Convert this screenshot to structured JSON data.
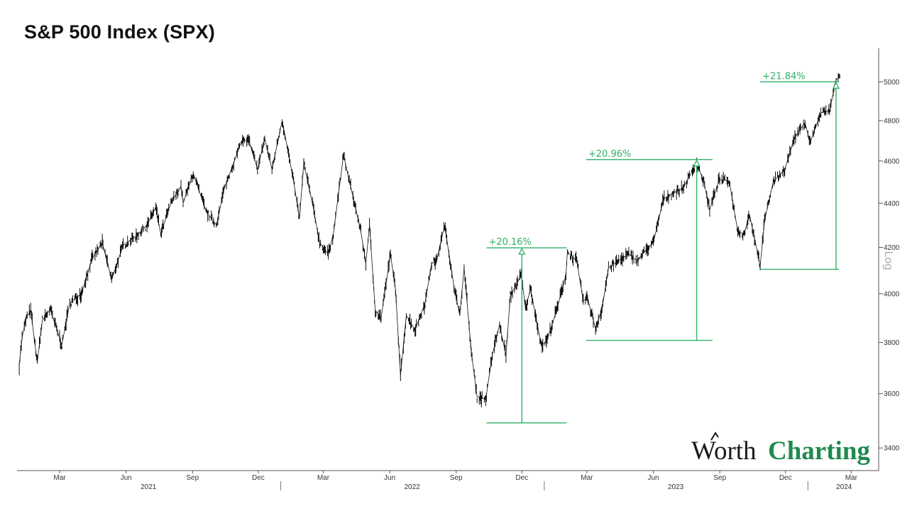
{
  "header": {
    "title": "S&P 500 Index (SPX)"
  },
  "logo": {
    "word1": "Worth",
    "word2": "Charting"
  },
  "colors": {
    "price": "#111111",
    "annotation": "#2fb065",
    "axis": "#555555",
    "logo_dark": "#1a1a1a",
    "logo_green": "#1f8a4c"
  },
  "chart_data": {
    "type": "line",
    "title": "S&P 500 Index (SPX)",
    "scale": "log",
    "scale_label": "Log",
    "grid": false,
    "ylim": [
      3320,
      5180
    ],
    "xlim": [
      "2021-01-01",
      "2024-04-08"
    ],
    "y_ticks": [
      3400,
      3600,
      3800,
      4000,
      4200,
      4400,
      4600,
      4800,
      5000
    ],
    "x_ticks": [
      {
        "date": "2021-03-01",
        "label": "Mar"
      },
      {
        "date": "2021-06-01",
        "label": "Jun"
      },
      {
        "date": "2021-09-01",
        "label": "Sep"
      },
      {
        "date": "2021-12-01",
        "label": "Dec"
      },
      {
        "date": "2022-03-01",
        "label": "Mar"
      },
      {
        "date": "2022-06-01",
        "label": "Jun"
      },
      {
        "date": "2022-09-01",
        "label": "Sep"
      },
      {
        "date": "2022-12-01",
        "label": "Dec"
      },
      {
        "date": "2023-03-01",
        "label": "Mar"
      },
      {
        "date": "2023-06-01",
        "label": "Jun"
      },
      {
        "date": "2023-09-01",
        "label": "Sep"
      },
      {
        "date": "2023-12-01",
        "label": "Dec"
      },
      {
        "date": "2024-03-01",
        "label": "Mar"
      }
    ],
    "years": [
      {
        "label": "2021",
        "center": "2021-07-02",
        "start": "2021-01-01"
      },
      {
        "label": "2022",
        "center": "2022-07-02",
        "start": "2022-01-01"
      },
      {
        "label": "2023",
        "center": "2023-07-02",
        "start": "2023-01-01"
      },
      {
        "label": "2024",
        "center": "2024-02-20",
        "start": "2024-01-01"
      }
    ],
    "series": [
      {
        "values": [
          [
            "2021-01-04",
            3710
          ],
          [
            "2021-01-08",
            3820
          ],
          [
            "2021-01-14",
            3900
          ],
          [
            "2021-01-20",
            3930
          ],
          [
            "2021-01-29",
            3720
          ],
          [
            "2021-02-05",
            3890
          ],
          [
            "2021-02-16",
            3935
          ],
          [
            "2021-03-04",
            3790
          ],
          [
            "2021-03-15",
            3960
          ],
          [
            "2021-03-31",
            4000
          ],
          [
            "2021-04-15",
            4150
          ],
          [
            "2021-04-29",
            4220
          ],
          [
            "2021-05-12",
            4060
          ],
          [
            "2021-05-28",
            4210
          ],
          [
            "2021-06-15",
            4250
          ],
          [
            "2021-06-30",
            4300
          ],
          [
            "2021-07-12",
            4380
          ],
          [
            "2021-07-19",
            4260
          ],
          [
            "2021-08-02",
            4400
          ],
          [
            "2021-08-16",
            4480
          ],
          [
            "2021-08-19",
            4400
          ],
          [
            "2021-09-02",
            4540
          ],
          [
            "2021-09-20",
            4360
          ],
          [
            "2021-10-04",
            4300
          ],
          [
            "2021-10-15",
            4470
          ],
          [
            "2021-10-29",
            4600
          ],
          [
            "2021-11-08",
            4700
          ],
          [
            "2021-11-18",
            4700
          ],
          [
            "2021-11-30",
            4560
          ],
          [
            "2021-12-10",
            4710
          ],
          [
            "2021-12-20",
            4560
          ],
          [
            "2022-01-03",
            4800
          ],
          [
            "2022-01-10",
            4670
          ],
          [
            "2022-01-20",
            4480
          ],
          [
            "2022-01-27",
            4330
          ],
          [
            "2022-02-02",
            4590
          ],
          [
            "2022-02-14",
            4400
          ],
          [
            "2022-02-24",
            4220
          ],
          [
            "2022-03-08",
            4170
          ],
          [
            "2022-03-15",
            4260
          ],
          [
            "2022-03-29",
            4630
          ],
          [
            "2022-04-05",
            4520
          ],
          [
            "2022-04-14",
            4390
          ],
          [
            "2022-04-22",
            4270
          ],
          [
            "2022-04-29",
            4130
          ],
          [
            "2022-05-04",
            4300
          ],
          [
            "2022-05-12",
            3930
          ],
          [
            "2022-05-20",
            3900
          ],
          [
            "2022-06-02",
            4170
          ],
          [
            "2022-06-09",
            4020
          ],
          [
            "2022-06-16",
            3670
          ],
          [
            "2022-06-24",
            3910
          ],
          [
            "2022-07-06",
            3850
          ],
          [
            "2022-07-20",
            3960
          ],
          [
            "2022-07-29",
            4130
          ],
          [
            "2022-08-05",
            4140
          ],
          [
            "2022-08-16",
            4300
          ],
          [
            "2022-08-29",
            4030
          ],
          [
            "2022-09-06",
            3910
          ],
          [
            "2022-09-12",
            4110
          ],
          [
            "2022-09-22",
            3760
          ],
          [
            "2022-09-30",
            3590
          ],
          [
            "2022-10-12",
            3580
          ],
          [
            "2022-10-21",
            3750
          ],
          [
            "2022-10-31",
            3870
          ],
          [
            "2022-11-09",
            3750
          ],
          [
            "2022-11-15",
            3990
          ],
          [
            "2022-11-30",
            4080
          ],
          [
            "2022-12-06",
            3940
          ],
          [
            "2022-12-13",
            4020
          ],
          [
            "2022-12-28",
            3785
          ],
          [
            "2023-01-05",
            3810
          ],
          [
            "2023-01-18",
            3930
          ],
          [
            "2023-01-31",
            4080
          ],
          [
            "2023-02-02",
            4180
          ],
          [
            "2023-02-15",
            4140
          ],
          [
            "2023-02-24",
            3970
          ],
          [
            "2023-03-02",
            3980
          ],
          [
            "2023-03-13",
            3855
          ],
          [
            "2023-03-22",
            3940
          ],
          [
            "2023-03-31",
            4110
          ],
          [
            "2023-04-18",
            4150
          ],
          [
            "2023-04-28",
            4170
          ],
          [
            "2023-05-10",
            4140
          ],
          [
            "2023-05-22",
            4190
          ],
          [
            "2023-06-01",
            4220
          ],
          [
            "2023-06-15",
            4420
          ],
          [
            "2023-06-30",
            4450
          ],
          [
            "2023-07-12",
            4470
          ],
          [
            "2023-07-31",
            4590
          ],
          [
            "2023-08-10",
            4500
          ],
          [
            "2023-08-18",
            4370
          ],
          [
            "2023-08-31",
            4510
          ],
          [
            "2023-09-14",
            4505
          ],
          [
            "2023-09-26",
            4270
          ],
          [
            "2023-10-05",
            4260
          ],
          [
            "2023-10-12",
            4350
          ],
          [
            "2023-10-27",
            4120
          ],
          [
            "2023-11-02",
            4320
          ],
          [
            "2023-11-14",
            4500
          ],
          [
            "2023-11-30",
            4560
          ],
          [
            "2023-12-13",
            4710
          ],
          [
            "2023-12-28",
            4790
          ],
          [
            "2024-01-04",
            4690
          ],
          [
            "2024-01-19",
            4840
          ],
          [
            "2024-01-31",
            4850
          ],
          [
            "2024-02-09",
            5010
          ],
          [
            "2024-02-15",
            5030
          ]
        ]
      }
    ],
    "annotations": [
      {
        "label": "+20.16%",
        "low": 3491,
        "high": 4198,
        "low_date": "2022-10-13",
        "high_date": "2022-12-01",
        "line_start": "2022-10-13",
        "line_end": "2023-02-01",
        "label_date": "2022-10-14"
      },
      {
        "label": "+20.96%",
        "low": 3808,
        "high": 4607,
        "low_date": "2023-03-13",
        "high_date": "2023-07-31",
        "line_start": "2023-02-28",
        "line_end": "2023-08-22",
        "label_date": "2023-03-01"
      },
      {
        "label": "+21.84%",
        "low": 4104,
        "high": 5000,
        "low_date": "2023-10-27",
        "high_date": "2024-02-09",
        "line_start": "2023-10-27",
        "line_end": "2024-02-13",
        "label_date": "2023-10-28"
      }
    ]
  }
}
